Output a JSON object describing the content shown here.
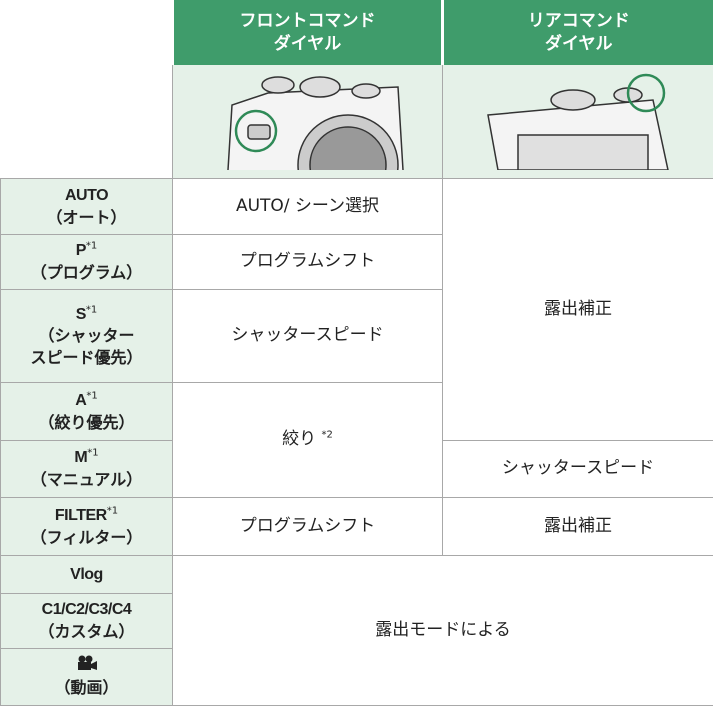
{
  "header": {
    "columns": [
      [
        "フロントコマンド",
        "ダイヤル"
      ],
      [
        "リアコマンド",
        "ダイヤル"
      ]
    ]
  },
  "rows": [
    {
      "mode": "AUTO",
      "sub": [
        "（オート）"
      ]
    },
    {
      "mode": "P",
      "note": "*1",
      "sub": [
        "（プログラム）"
      ]
    },
    {
      "mode": "S",
      "note": "*1",
      "sub": [
        "（シャッター",
        "スピード優先）"
      ]
    },
    {
      "mode": "A",
      "note": "*1",
      "sub": [
        "（絞り優先）"
      ]
    },
    {
      "mode": "M",
      "note": "*1",
      "sub": [
        "（マニュアル）"
      ]
    },
    {
      "mode": "FILTER",
      "note": "*1",
      "sub": [
        "（フィルター）"
      ]
    },
    {
      "mode": "Vlog",
      "sub": []
    },
    {
      "mode": "C1/C2/C3/C4",
      "sub": [
        "（カスタム）"
      ]
    },
    {
      "mode": "",
      "sub": [
        "（動画）"
      ]
    }
  ],
  "cells": {
    "auto_front": "AUTO/ シーン選択",
    "p_front": "プログラムシフト",
    "s_front": "シャッタースピード",
    "am_front": {
      "text": "絞り",
      "note": "*2"
    },
    "rear_exposure": "露出補正",
    "m_rear": "シャッタースピード",
    "filter_front": "プログラムシフト",
    "filter_rear": "露出補正",
    "custom_both": "露出モードによる"
  }
}
